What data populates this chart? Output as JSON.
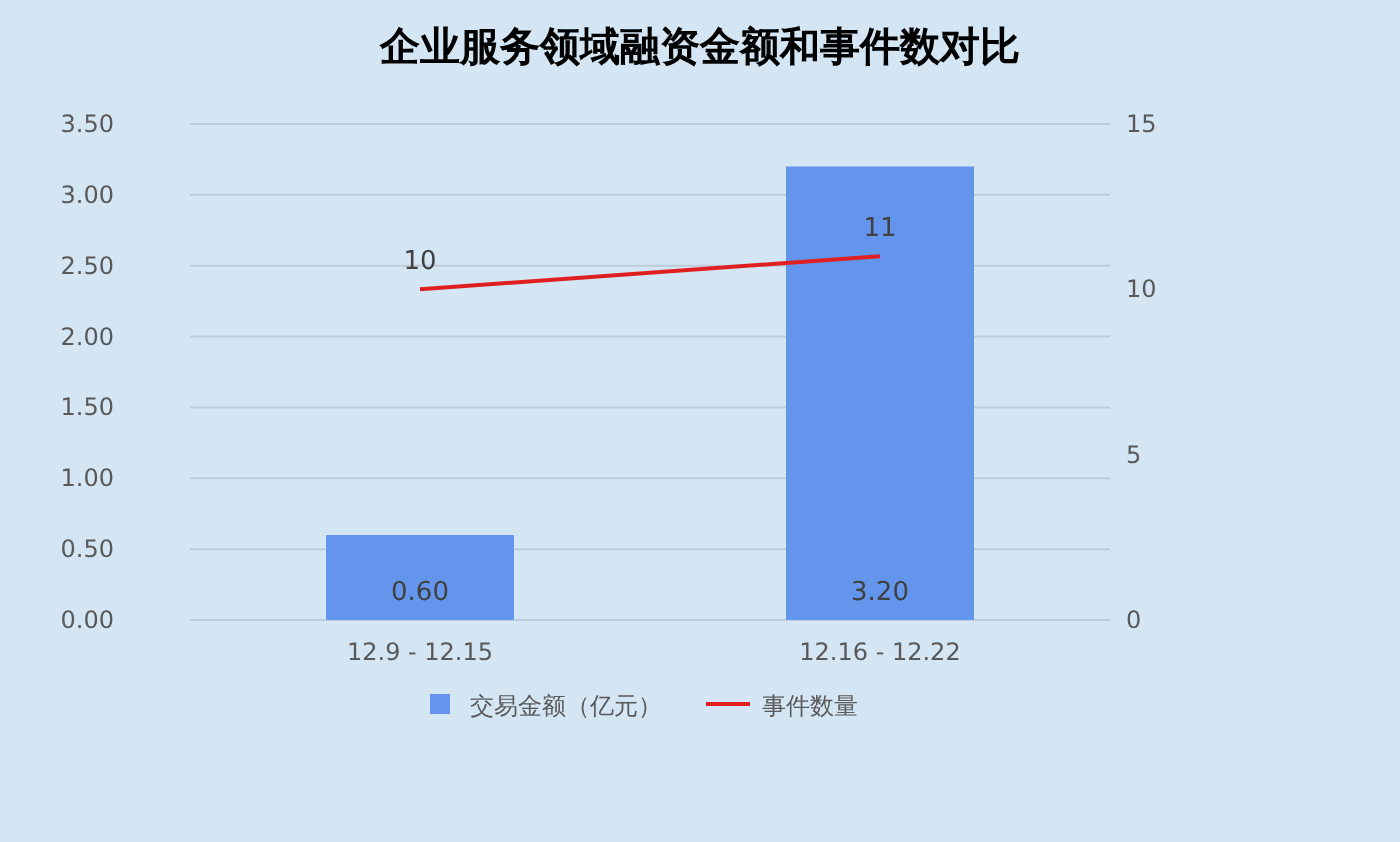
{
  "chart_data": {
    "type": "bar",
    "title": "企业服务领域融资金额和事件数对比",
    "categories": [
      "12.9 - 12.15",
      "12.16 - 12.22"
    ],
    "series": [
      {
        "name": "交易金额（亿元）",
        "color": "#6495ed",
        "values": [
          0.6,
          3.2
        ],
        "value_labels": [
          "0.60",
          "3.20"
        ]
      },
      {
        "name": "事件数量",
        "type": "line",
        "axis": "y2",
        "color": "#e02020",
        "values": [
          10,
          11
        ],
        "value_labels": [
          "10",
          "11"
        ]
      }
    ],
    "ylim": [
      0,
      3.5
    ],
    "yticks": [
      {
        "value": 0,
        "label": "0.00"
      },
      {
        "value": 0.5,
        "label": "0.50"
      },
      {
        "value": 1,
        "label": "1.00"
      },
      {
        "value": 1.5,
        "label": "1.50"
      },
      {
        "value": 2,
        "label": "2.00"
      },
      {
        "value": 2.5,
        "label": "2.50"
      },
      {
        "value": 3,
        "label": "3.00"
      },
      {
        "value": 3.5,
        "label": "3.50"
      }
    ],
    "y2lim": [
      0,
      15
    ],
    "y2ticks": [
      0,
      5,
      10,
      15
    ],
    "grid": "y",
    "legend": "bottom",
    "marker": "none"
  }
}
